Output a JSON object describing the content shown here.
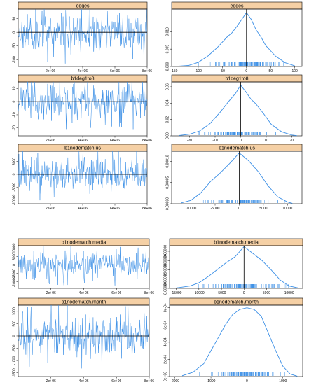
{
  "colors": {
    "strip": "#F5D0A5",
    "trace": "#3B8FE6",
    "axis": "#000000",
    "zero_line": "#000000"
  },
  "chart_data": [
    {
      "type": "line",
      "panel": "trace",
      "title": "edges",
      "x_range": [
        0,
        8000000
      ],
      "ylim": [
        -125,
        85
      ],
      "x_ticks": [
        2000000,
        4000000,
        6000000,
        8000000
      ],
      "x_tick_labels": [
        "2e+06",
        "4e+06",
        "6e+06",
        "8e+06"
      ],
      "y_ticks": [
        -100,
        -50,
        0,
        50
      ],
      "y_tick_labels": [
        "-100",
        "-50",
        "0",
        "50"
      ],
      "zero_line": 0,
      "spread": 36,
      "extreme": 115,
      "seed": 11
    },
    {
      "type": "area",
      "panel": "density",
      "title": "edges",
      "xlim": [
        -155,
        115
      ],
      "ylim": [
        0,
        0.0165
      ],
      "x_ticks": [
        -150,
        -100,
        -50,
        0,
        50,
        100
      ],
      "x_tick_labels": [
        "-150",
        "-100",
        "-50",
        "0",
        "50",
        "100"
      ],
      "y_ticks": [
        0.0,
        0.005,
        0.01
      ],
      "y_tick_labels": [
        "0.000",
        "0.005",
        "0.010"
      ],
      "density_x": [
        -140,
        -120,
        -100,
        -80,
        -60,
        -50,
        -40,
        -30,
        -20,
        -10,
        0,
        10,
        20,
        30,
        40,
        60,
        80,
        100
      ],
      "density_y": [
        0.0001,
        0.0003,
        0.0012,
        0.003,
        0.0055,
        0.007,
        0.0085,
        0.0097,
        0.0115,
        0.0135,
        0.0155,
        0.0135,
        0.0105,
        0.0085,
        0.006,
        0.003,
        0.0011,
        0.0002
      ],
      "zero_line": 0,
      "rug_spread": 36,
      "seed": 11
    },
    {
      "type": "line",
      "panel": "trace",
      "title": "b1deg1to8",
      "x_range": [
        0,
        8000000
      ],
      "ylim": [
        -26,
        15
      ],
      "x_ticks": [
        2000000,
        4000000,
        6000000,
        8000000
      ],
      "x_tick_labels": [
        "2e+06",
        "4e+06",
        "6e+06",
        "8e+06"
      ],
      "y_ticks": [
        -20,
        -10,
        0,
        10
      ],
      "y_tick_labels": [
        "-20",
        "-10",
        "0",
        "10"
      ],
      "zero_line": 0,
      "spread": 6.5,
      "extreme": 22,
      "seed": 23
    },
    {
      "type": "area",
      "panel": "density",
      "title": "b1deg1to8",
      "xlim": [
        -27,
        24
      ],
      "ylim": [
        0,
        0.066
      ],
      "x_ticks": [
        -20,
        -10,
        0,
        10,
        20
      ],
      "x_tick_labels": [
        "-20",
        "-10",
        "0",
        "10",
        "20"
      ],
      "y_ticks": [
        0.0,
        0.02,
        0.04,
        0.06
      ],
      "y_tick_labels": [
        "0.00",
        "0.02",
        "0.04",
        "0.06"
      ],
      "density_x": [
        -24,
        -20,
        -16,
        -12,
        -8,
        -5,
        -2,
        0,
        2,
        4,
        6,
        9,
        12,
        16,
        20,
        22
      ],
      "density_y": [
        0.0005,
        0.002,
        0.006,
        0.015,
        0.029,
        0.041,
        0.052,
        0.062,
        0.054,
        0.045,
        0.039,
        0.027,
        0.014,
        0.005,
        0.001,
        0.0003
      ],
      "zero_line": 0,
      "rug_spread": 6.5,
      "seed": 23
    },
    {
      "type": "line",
      "panel": "trace",
      "title": "b1nodematch.us",
      "x_range": [
        0,
        8000000
      ],
      "ylim": [
        -11500,
        9000
      ],
      "x_ticks": [
        2000000,
        4000000,
        6000000,
        8000000
      ],
      "x_tick_labels": [
        "2e+06",
        "4e+06",
        "6e+06",
        "8e+06"
      ],
      "y_ticks": [
        -10000,
        -5000,
        0,
        5000
      ],
      "y_tick_labels": [
        "-10000",
        "-5000",
        "0",
        "5000"
      ],
      "zero_line": 0,
      "spread": 3200,
      "extreme": 10500,
      "seed": 37
    },
    {
      "type": "area",
      "panel": "density",
      "title": "b1nodematch.us",
      "xlim": [
        -14000,
        13000
      ],
      "ylim": [
        0,
        0.000124
      ],
      "x_ticks": [
        -10000,
        -5000,
        0,
        5000,
        10000
      ],
      "x_tick_labels": [
        "-10000",
        "-5000",
        "0",
        "5000",
        "10000"
      ],
      "y_ticks": [
        0.0,
        5e-05,
        0.0001
      ],
      "y_tick_labels": [
        "0.00000",
        "0.00005",
        "0.00010"
      ],
      "density_x": [
        -12000,
        -10000,
        -8000,
        -6000,
        -4000,
        -2000,
        0,
        2000,
        4000,
        6000,
        8000,
        10000,
        11000
      ],
      "density_y": [
        2e-06,
        8e-06,
        2.5e-05,
        5.2e-05,
        7.2e-05,
        9.5e-05,
        0.00012,
        0.000101,
        7.5e-05,
        4.2e-05,
        1.6e-05,
        4e-06,
        1e-06
      ],
      "zero_line": 0,
      "rug_spread": 3200,
      "seed": 37
    },
    {
      "type": "line",
      "panel": "trace",
      "title": "b1nodematch.media",
      "x_range": [
        0,
        8000000
      ],
      "ylim": [
        -14000,
        11500
      ],
      "x_ticks": [
        2000000,
        4000000,
        6000000,
        8000000
      ],
      "x_tick_labels": [
        "2e+06",
        "4e+06",
        "6e+06",
        "8e+06"
      ],
      "y_ticks": [
        -10000,
        -5000,
        0,
        5000,
        10000
      ],
      "y_tick_labels": [
        "-10000",
        "-5000",
        "0",
        "5000",
        "10000"
      ],
      "zero_line": 0,
      "spread": 4200,
      "extreme": 13000,
      "seed": 53
    },
    {
      "type": "area",
      "panel": "density",
      "title": "b1nodematch.media",
      "xlim": [
        -16500,
        13000
      ],
      "ylim": [
        0,
        9.2e-05
      ],
      "x_ticks": [
        -15000,
        -10000,
        -5000,
        0,
        5000,
        10000
      ],
      "x_tick_labels": [
        "-15000",
        "-10000",
        "-5000",
        "0",
        "5000",
        "10000"
      ],
      "y_ticks": [
        0.0,
        2e-05,
        4e-05,
        6e-05,
        8e-05
      ],
      "y_tick_labels": [
        "0.00000",
        "0.00002",
        "0.00004",
        "0.00006",
        "0.00008"
      ],
      "density_x": [
        -15000,
        -12000,
        -10000,
        -8000,
        -6000,
        -4000,
        -2000,
        0,
        2000,
        4000,
        6000,
        8000,
        10000,
        12000
      ],
      "density_y": [
        1e-06,
        5e-06,
        1.2e-05,
        2.5e-05,
        4e-05,
        5.5e-05,
        6.8e-05,
        9e-05,
        7.5e-05,
        6e-05,
        4e-05,
        1.8e-05,
        5e-06,
        1e-06
      ],
      "zero_line": 0,
      "rug_spread": 4200,
      "seed": 53
    },
    {
      "type": "line",
      "panel": "trace",
      "title": "b1nodematch.month",
      "x_range": [
        0,
        8000000
      ],
      "ylim": [
        -1650,
        1250
      ],
      "x_ticks": [
        2000000,
        4000000,
        6000000,
        8000000
      ],
      "x_tick_labels": [
        "2e+06",
        "4e+06",
        "6e+06",
        "8e+06"
      ],
      "y_ticks": [
        -1500,
        -1000,
        -500,
        0,
        500,
        1000
      ],
      "y_tick_labels": [
        "-1500",
        "-1000",
        "-500",
        "0",
        "500",
        "1000"
      ],
      "zero_line": 0,
      "spread": 430,
      "extreme": 1450,
      "seed": 71
    },
    {
      "type": "area",
      "panel": "density",
      "title": "b1nodematch.month",
      "xlim": [
        -2150,
        1550
      ],
      "ylim": [
        0,
        0.00083
      ],
      "x_ticks": [
        -2000,
        -1000,
        0,
        1000
      ],
      "x_tick_labels": [
        "-2000",
        "-1000",
        "0",
        "1000"
      ],
      "y_ticks": [
        0.0,
        0.0002,
        0.0004,
        0.0006,
        0.0008
      ],
      "y_tick_labels": [
        "0e+00",
        "2e-04",
        "4e-04",
        "6e-04",
        "8e-04"
      ],
      "density_x": [
        -1800,
        -1500,
        -1200,
        -1000,
        -800,
        -600,
        -400,
        -200,
        0,
        200,
        400,
        600,
        800,
        1000,
        1200,
        1400
      ],
      "density_y": [
        1e-05,
        5e-05,
        0.00015,
        0.0003,
        0.00045,
        0.0006,
        0.00072,
        0.00078,
        0.0008,
        0.00078,
        0.0007,
        0.0005,
        0.0003,
        0.00012,
        3e-05,
        5e-06
      ],
      "zero_line": 0,
      "rug_spread": 430,
      "seed": 71
    }
  ]
}
